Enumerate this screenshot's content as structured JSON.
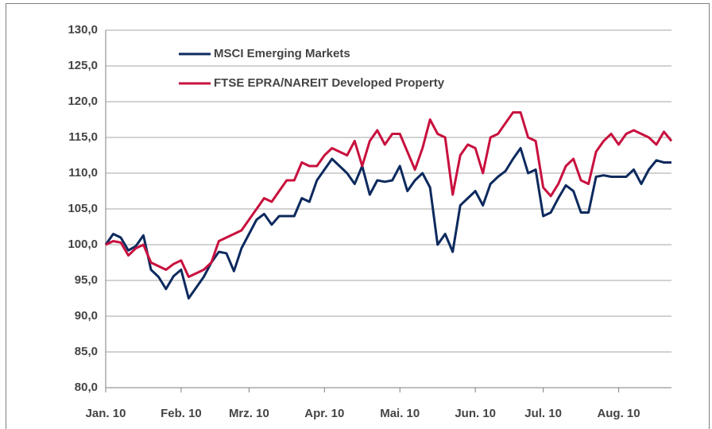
{
  "chart_data": {
    "type": "line",
    "categories": [
      "Jan. 10",
      null,
      null,
      null,
      null,
      null,
      null,
      null,
      null,
      null,
      "Feb. 10",
      null,
      null,
      null,
      null,
      null,
      null,
      null,
      null,
      "Mrz. 10",
      null,
      null,
      null,
      null,
      null,
      null,
      null,
      null,
      null,
      "Apr. 10",
      null,
      null,
      null,
      null,
      null,
      null,
      null,
      null,
      null,
      "Mai. 10",
      null,
      null,
      null,
      null,
      null,
      null,
      null,
      null,
      null,
      "Jun. 10",
      null,
      null,
      null,
      null,
      null,
      null,
      null,
      null,
      "Jul. 10",
      null,
      null,
      null,
      null,
      null,
      null,
      null,
      null,
      null,
      "Aug. 10",
      null,
      null,
      null,
      null,
      null,
      null,
      null
    ],
    "series": [
      {
        "name": "MSCI Emerging Markets",
        "color": "#0d2a5e",
        "values": [
          100.0,
          101.5,
          101.0,
          99.2,
          99.8,
          101.3,
          96.5,
          95.5,
          93.8,
          95.6,
          96.5,
          92.5,
          94.0,
          95.5,
          97.5,
          99.0,
          98.8,
          96.3,
          99.5,
          101.5,
          103.5,
          104.3,
          102.8,
          104.0,
          104.0,
          104.0,
          106.5,
          106.0,
          109.0,
          110.5,
          112.0,
          111.0,
          110.0,
          108.5,
          111.0,
          107.0,
          109.0,
          108.8,
          109.0,
          111.0,
          107.5,
          109.0,
          110.0,
          108.0,
          100.0,
          101.5,
          99.0,
          105.5,
          106.5,
          107.5,
          105.5,
          108.5,
          109.5,
          110.3,
          112.0,
          113.5,
          110.0,
          110.5,
          104.0,
          104.5,
          106.5,
          108.3,
          107.5,
          104.5,
          104.5,
          109.5,
          109.7,
          109.5,
          109.5,
          109.5,
          110.5,
          108.5,
          110.5,
          111.8,
          111.5,
          111.5
        ]
      },
      {
        "name": "FTSE EPRA/NAREIT Developed Property",
        "color": "#c8103e",
        "values": [
          100.0,
          100.5,
          100.3,
          98.5,
          99.5,
          100.0,
          97.5,
          97.0,
          96.5,
          97.3,
          97.8,
          95.5,
          96.0,
          96.5,
          97.5,
          100.5,
          101.0,
          101.5,
          102.0,
          103.5,
          105.0,
          106.5,
          106.0,
          107.5,
          109.0,
          109.0,
          111.5,
          111.0,
          111.0,
          112.5,
          113.5,
          113.0,
          112.5,
          114.5,
          111.0,
          114.5,
          116.0,
          114.0,
          115.5,
          115.5,
          113.0,
          110.5,
          113.5,
          117.5,
          115.5,
          115.0,
          107.0,
          112.5,
          114.0,
          113.5,
          110.0,
          115.0,
          115.5,
          117.0,
          118.5,
          118.5,
          115.0,
          114.5,
          108.0,
          106.8,
          108.5,
          111.0,
          112.0,
          109.0,
          108.5,
          113.0,
          114.5,
          115.5,
          114.0,
          115.5,
          116.0,
          115.5,
          115.0,
          114.0,
          115.8,
          114.5
        ]
      }
    ],
    "ylim": [
      80,
      130
    ],
    "yticks": [
      {
        "value": 80,
        "label": "80,0"
      },
      {
        "value": 85,
        "label": "85,0"
      },
      {
        "value": 90,
        "label": "90,0"
      },
      {
        "value": 95,
        "label": "95,0"
      },
      {
        "value": 100,
        "label": "100,0"
      },
      {
        "value": 105,
        "label": "105,0"
      },
      {
        "value": 110,
        "label": "110,0"
      },
      {
        "value": 115,
        "label": "115,0"
      },
      {
        "value": 120,
        "label": "120,0"
      },
      {
        "value": 125,
        "label": "125,0"
      },
      {
        "value": 130,
        "label": "130,0"
      }
    ],
    "grid": true,
    "legend": "top-left"
  }
}
